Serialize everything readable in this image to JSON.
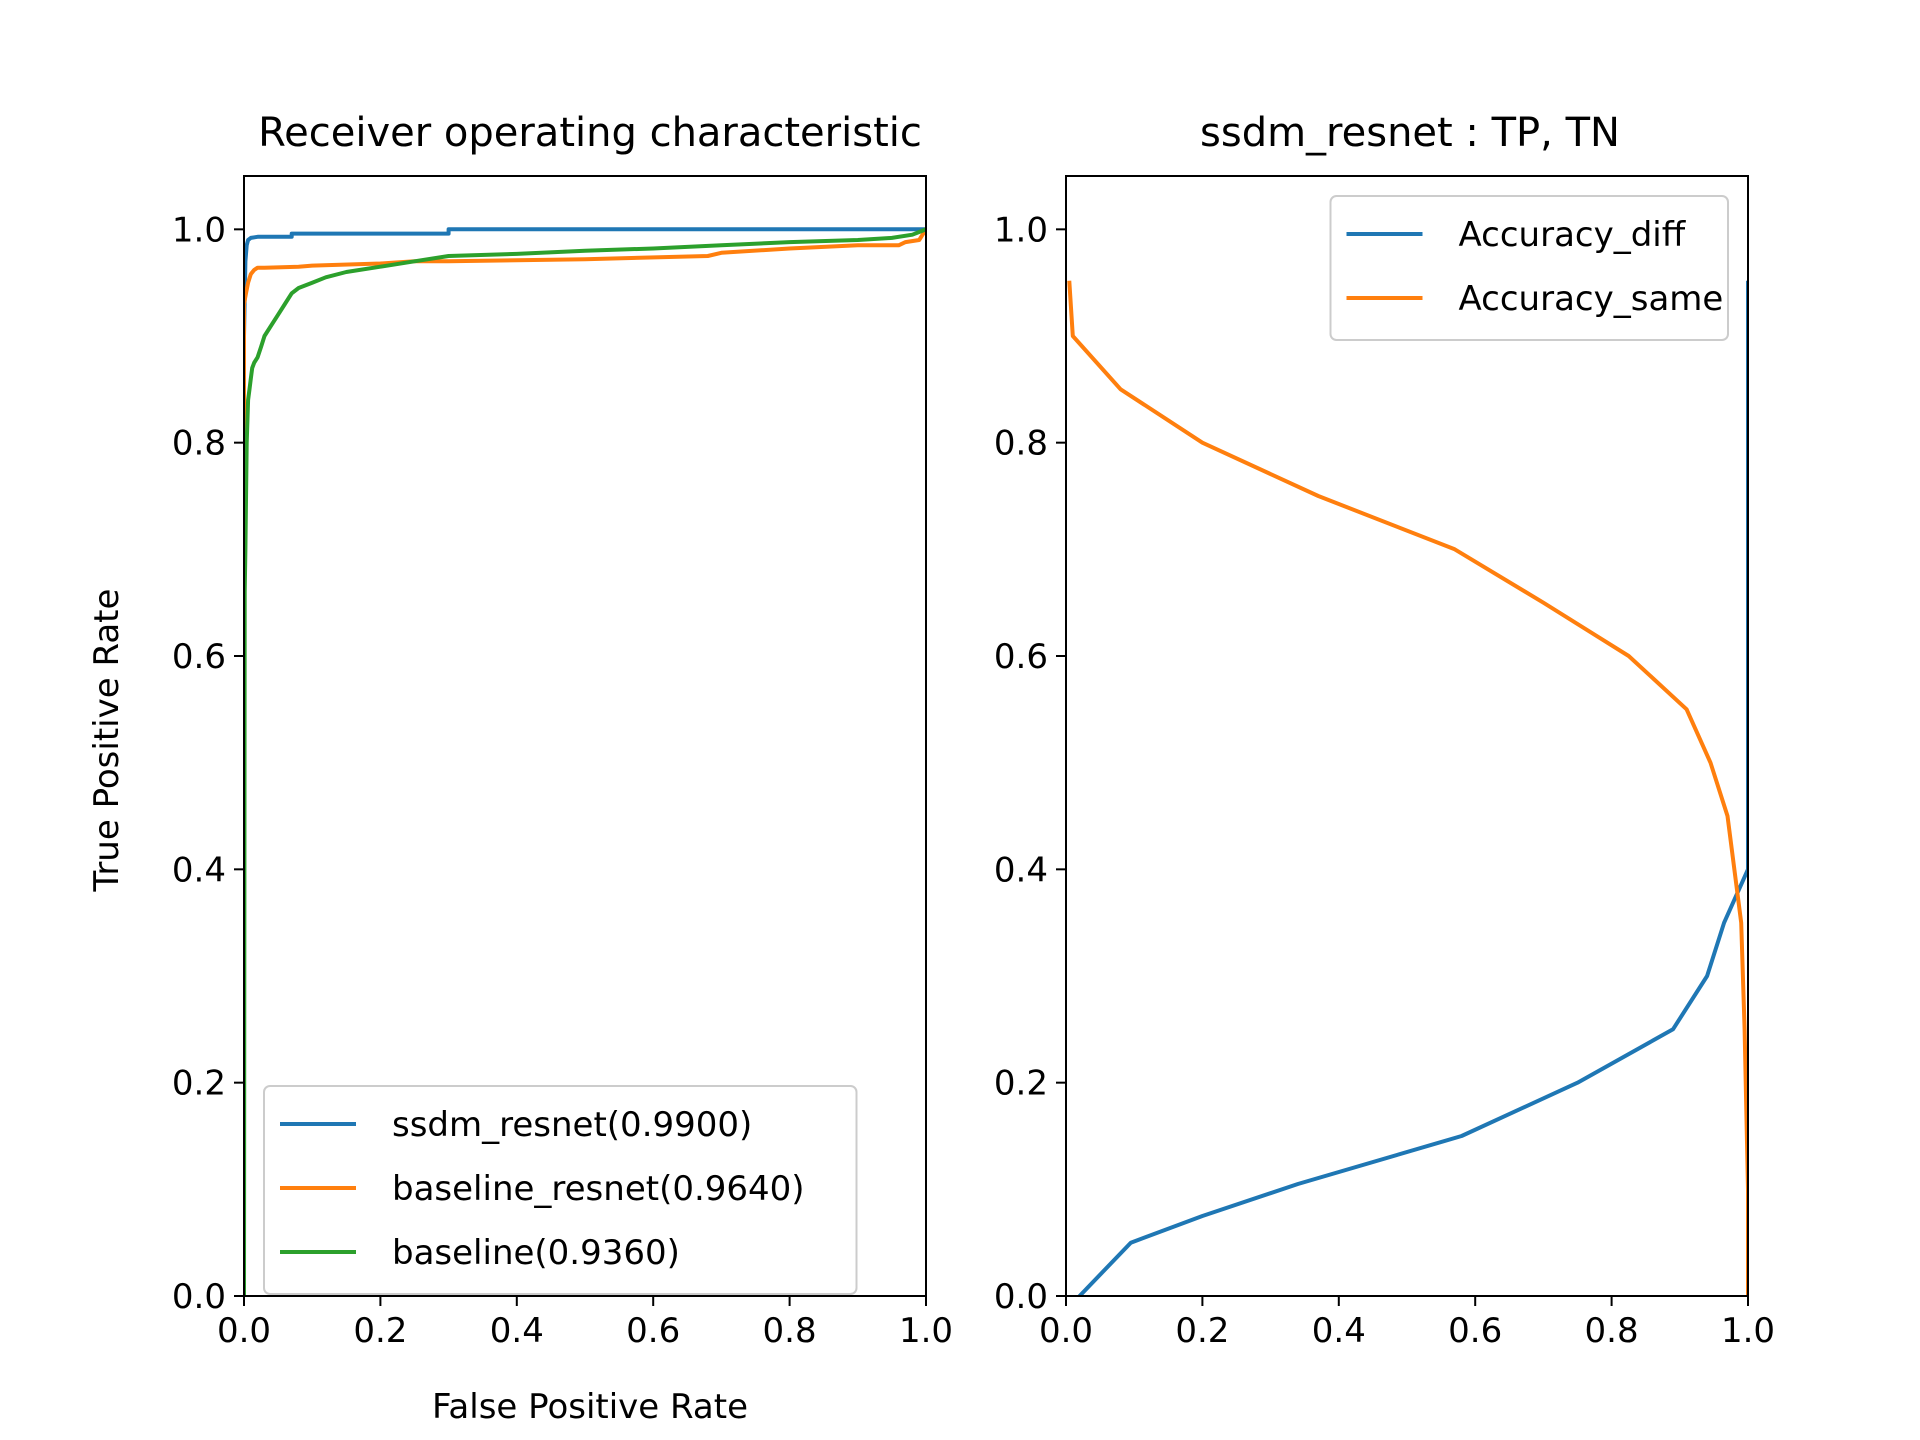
{
  "chart_data": [
    {
      "type": "line",
      "title": "Receiver operating characteristic",
      "xlabel": "False Positive Rate",
      "ylabel": "True Positive Rate",
      "xlim": [
        0.0,
        1.0
      ],
      "ylim": [
        0.0,
        1.05
      ],
      "xticks": [
        "0.0",
        "0.2",
        "0.4",
        "0.6",
        "0.8",
        "1.0"
      ],
      "yticks": [
        "0.0",
        "0.2",
        "0.4",
        "0.6",
        "0.8",
        "1.0"
      ],
      "grid": false,
      "legend_position": "lower-right",
      "series": [
        {
          "name": "ssdm_resnet(0.9900)",
          "color": "#1f77b4",
          "x": [
            0.0,
            0.0,
            0.002,
            0.004,
            0.006,
            0.01,
            0.02,
            0.07,
            0.07,
            0.3,
            0.3,
            1.0
          ],
          "y": [
            0.0,
            0.9,
            0.97,
            0.985,
            0.99,
            0.992,
            0.993,
            0.993,
            0.996,
            0.996,
            1.0,
            1.0
          ]
        },
        {
          "name": "baseline_resnet(0.9640)",
          "color": "#ff7f0e",
          "x": [
            0.0,
            0.0,
            0.003,
            0.006,
            0.01,
            0.015,
            0.02,
            0.03,
            0.08,
            0.1,
            0.2,
            0.25,
            0.3,
            0.5,
            0.68,
            0.7,
            0.8,
            0.9,
            0.96,
            0.97,
            0.99,
            1.0
          ],
          "y": [
            0.0,
            0.93,
            0.94,
            0.95,
            0.958,
            0.962,
            0.964,
            0.964,
            0.965,
            0.966,
            0.968,
            0.97,
            0.97,
            0.972,
            0.975,
            0.978,
            0.982,
            0.985,
            0.985,
            0.988,
            0.99,
            1.0
          ]
        },
        {
          "name": "baseline(0.9360)",
          "color": "#2ca02c",
          "x": [
            0.0,
            0.001,
            0.002,
            0.004,
            0.006,
            0.008,
            0.01,
            0.012,
            0.015,
            0.02,
            0.025,
            0.03,
            0.04,
            0.05,
            0.06,
            0.07,
            0.08,
            0.1,
            0.12,
            0.15,
            0.2,
            0.25,
            0.3,
            0.4,
            0.5,
            0.6,
            0.7,
            0.8,
            0.9,
            0.95,
            0.98,
            1.0
          ],
          "y": [
            0.0,
            0.66,
            0.7,
            0.8,
            0.84,
            0.85,
            0.86,
            0.87,
            0.875,
            0.88,
            0.89,
            0.9,
            0.91,
            0.92,
            0.93,
            0.94,
            0.945,
            0.95,
            0.955,
            0.96,
            0.965,
            0.97,
            0.975,
            0.977,
            0.98,
            0.982,
            0.985,
            0.988,
            0.99,
            0.992,
            0.995,
            1.0
          ]
        }
      ]
    },
    {
      "type": "line",
      "title": "ssdm_resnet : TP, TN",
      "xlabel": "",
      "ylabel": "",
      "xlim": [
        0.0,
        1.0
      ],
      "ylim": [
        0.0,
        1.05
      ],
      "xticks": [
        "0.0",
        "0.2",
        "0.4",
        "0.6",
        "0.8",
        "1.0"
      ],
      "yticks": [
        "0.0",
        "0.2",
        "0.4",
        "0.6",
        "0.8",
        "1.0"
      ],
      "grid": false,
      "legend_position": "upper-right",
      "series": [
        {
          "name": "Accuracy_diff",
          "color": "#1f77b4",
          "x": [
            0.02,
            0.095,
            0.2,
            0.34,
            0.58,
            0.75,
            0.89,
            0.94,
            0.965,
            1.0,
            1.0,
            1.0
          ],
          "y": [
            0.0,
            0.05,
            0.075,
            0.105,
            0.15,
            0.2,
            0.25,
            0.3,
            0.35,
            0.4,
            0.5,
            0.95
          ]
        },
        {
          "name": "Accuracy_same",
          "color": "#ff7f0e",
          "x": [
            0.005,
            0.01,
            0.08,
            0.2,
            0.37,
            0.57,
            0.7,
            0.825,
            0.91,
            0.945,
            0.97,
            0.99,
            0.995,
            1.0,
            1.0
          ],
          "y": [
            0.95,
            0.9,
            0.85,
            0.8,
            0.75,
            0.7,
            0.65,
            0.6,
            0.55,
            0.5,
            0.45,
            0.35,
            0.25,
            0.1,
            0.0
          ]
        }
      ]
    }
  ]
}
